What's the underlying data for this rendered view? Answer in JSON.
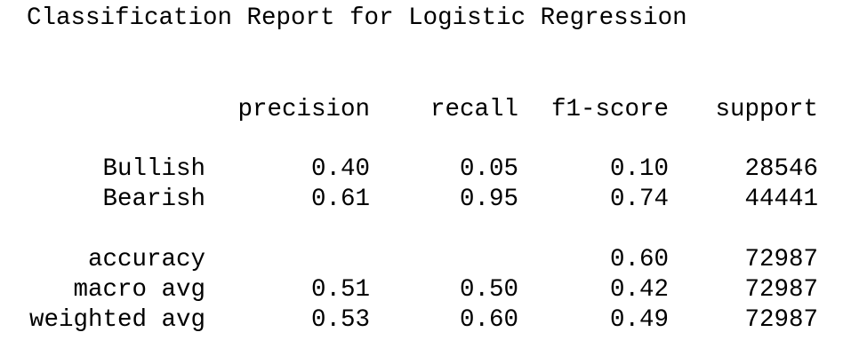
{
  "header": {
    "title": "Classification Report for Logistic Regression"
  },
  "table": {
    "columns": [
      "precision",
      "recall",
      "f1-score",
      "support"
    ],
    "rows": [
      {
        "label": "Bullish",
        "precision": "0.40",
        "recall": "0.05",
        "f1-score": "0.10",
        "support": "28546"
      },
      {
        "label": "Bearish",
        "precision": "0.61",
        "recall": "0.95",
        "f1-score": "0.74",
        "support": "44441"
      },
      {
        "label": "accuracy",
        "f1-score": "0.60",
        "support": "72987"
      },
      {
        "label": "macro avg",
        "precision": "0.51",
        "recall": "0.50",
        "f1-score": "0.42",
        "support": "72987"
      },
      {
        "label": "weighted avg",
        "precision": "0.53",
        "recall": "0.60",
        "f1-score": "0.49",
        "support": "72987"
      }
    ]
  }
}
